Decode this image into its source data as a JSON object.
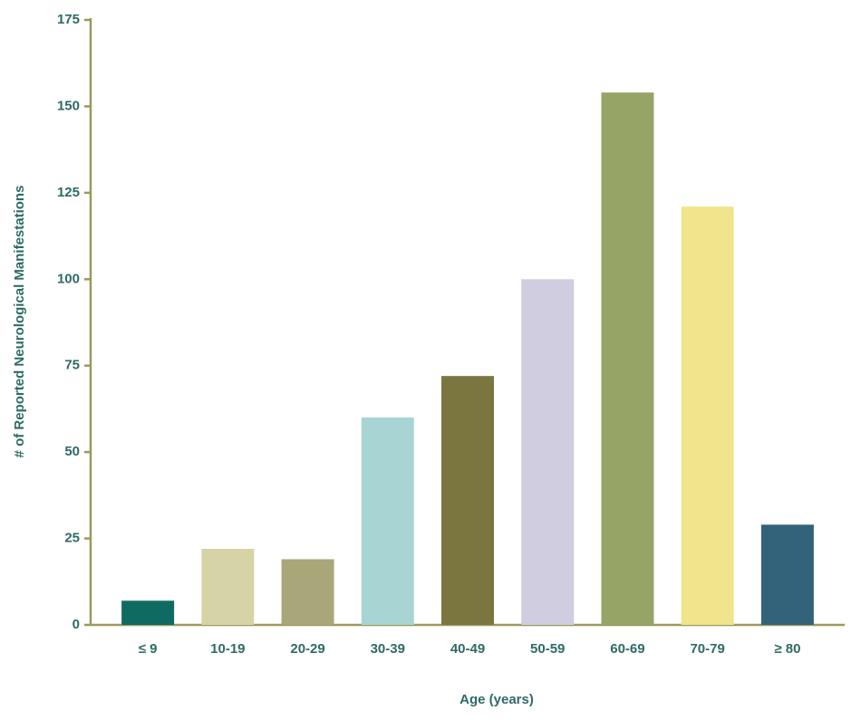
{
  "chart_data": {
    "type": "bar",
    "xlabel": "Age (years)",
    "ylabel": "# of Reported Neurological Manifestations",
    "categories": [
      "≤ 9",
      "10-19",
      "20-29",
      "30-39",
      "40-49",
      "50-59",
      "60-69",
      "70-79",
      "≥ 80"
    ],
    "values": [
      7,
      22,
      19,
      60,
      72,
      100,
      154,
      121,
      29
    ],
    "colors": [
      "#0f6b62",
      "#d6d4a6",
      "#a9a679",
      "#a8d5d3",
      "#7b7640",
      "#d0cde1",
      "#96a466",
      "#f0e48c",
      "#33637b"
    ],
    "ylim": [
      0,
      175
    ],
    "yticks": [
      0,
      25,
      50,
      75,
      100,
      125,
      150,
      175
    ],
    "grid": false
  }
}
